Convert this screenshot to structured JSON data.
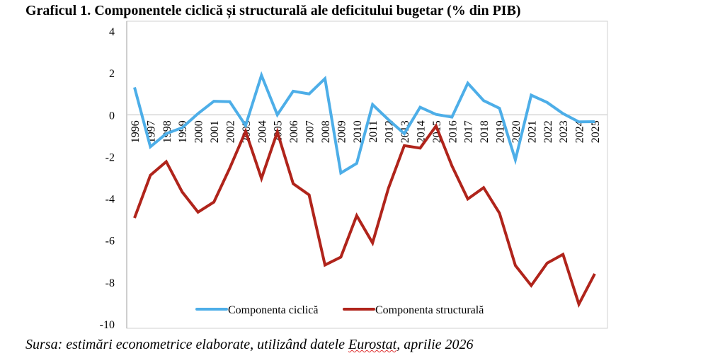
{
  "chart_data": {
    "type": "line",
    "title": "Graficul 1. Componentele ciclică și structurală ale deficitului bugetar (% din PIB)",
    "xlabel": "",
    "ylabel": "",
    "ylim": [
      -10,
      4
    ],
    "yticks": [
      4,
      2,
      0,
      -2,
      -4,
      -6,
      -8,
      -10
    ],
    "grid": false,
    "legend_position": "bottom",
    "categories": [
      "1996",
      "1997",
      "1998",
      "1999",
      "2000",
      "2001",
      "2002",
      "2003",
      "2004",
      "2005",
      "2006",
      "2007",
      "2008",
      "2009",
      "2010",
      "2011",
      "2012",
      "2013",
      "2014",
      "2015",
      "2016",
      "2017",
      "2018",
      "2019",
      "2020",
      "2021",
      "2022",
      "2023",
      "2024",
      "2025"
    ],
    "series": [
      {
        "name": "Componenta ciclică",
        "color": "#4daee8",
        "values": [
          1.31,
          -1.53,
          -0.9,
          -0.62,
          0.06,
          0.65,
          0.63,
          -0.51,
          1.89,
          0.0,
          1.13,
          1.0,
          1.73,
          -2.78,
          -2.32,
          0.49,
          -0.23,
          -0.9,
          0.36,
          0.02,
          -0.11,
          1.51,
          0.68,
          0.31,
          -2.15,
          0.94,
          0.59,
          0.06,
          -0.34,
          -0.33
        ]
      },
      {
        "name": "Componenta structurală",
        "color": "#b0241b",
        "values": [
          -4.93,
          -2.89,
          -2.24,
          -3.68,
          -4.65,
          -4.17,
          -2.55,
          -0.79,
          -3.04,
          -0.82,
          -3.29,
          -3.83,
          -7.18,
          -6.8,
          -4.82,
          -6.12,
          -3.51,
          -1.47,
          -1.59,
          -0.53,
          -2.44,
          -4.02,
          -3.48,
          -4.7,
          -7.2,
          -8.16,
          -7.09,
          -6.67,
          -9.05,
          -7.6
        ]
      }
    ]
  },
  "source": {
    "prefix": "Sursa: estimări econometrice elaborate, utilizând datele ",
    "link": "Eurostat",
    "suffix": ", aprilie 2026"
  }
}
